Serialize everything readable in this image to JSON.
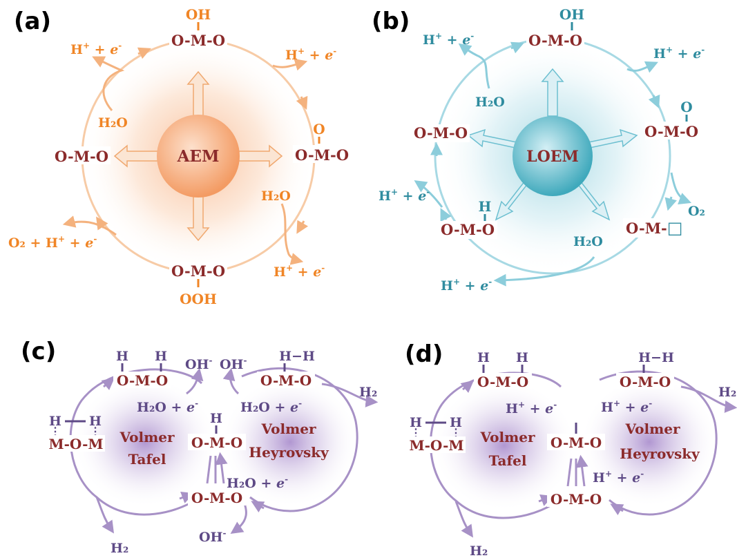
{
  "colors": {
    "orange": "#f08526",
    "orange_light": "#f7c8a0",
    "orange_sphere": "#f6a872",
    "teal": "#2f8c9f",
    "teal_light": "#9fd3df",
    "teal_sphere": "#58b8c8",
    "purple_text": "#5e4a86",
    "purple_line": "#a791c6",
    "purple_glow": "#9a7cc0",
    "maroon": "#8b2b2b"
  },
  "panel_a": {
    "label": "(a)",
    "center": "AEM",
    "top_sub": "OH",
    "top": "O-M-O",
    "right_sub": "O",
    "right": "O-M-O",
    "bottom": "O-M-O",
    "bottom_sub": "OOH",
    "left": "O-M-O",
    "h_top_left": "H",
    "h_top_left_sup": "+",
    "h_top_left_tail": "+ ",
    "h_top_left_e": "e",
    "h_top_left_esup": "-",
    "water_left": "H₂O",
    "h_top_right": "H",
    "h_top_right_sup": "+",
    "h_top_right_tail": "+ ",
    "h_top_right_e": "e",
    "h_top_right_esup": "-",
    "water_right": "H₂O",
    "h_bottom_right": "H",
    "h_bottom_right_sup": "+",
    "h_bottom_right_tail": "+ ",
    "h_bottom_right_e": "e",
    "h_bottom_right_esup": "-",
    "o2_left": "O₂ + H",
    "o2_left_sup": "+",
    "o2_left_tail": "+ ",
    "o2_left_e": "e",
    "o2_left_esup": "-"
  },
  "panel_b": {
    "label": "(b)",
    "center": "LOEM",
    "top_sub": "OH",
    "top": "O-M-O",
    "right_sub": "O",
    "right": "O-M-O",
    "vacancy": "O-M-",
    "vacancy_box": "□",
    "left_sub": "H",
    "left_lower": "O-M-O",
    "left": "O-M-O",
    "h_top_left": "H",
    "h_top_left_sup": "+",
    "h_top_left_tail": "+ ",
    "h_top_left_e": "e",
    "h_top_left_esup": "-",
    "water_top": "H₂O",
    "h_top_right": "H",
    "h_top_right_sup": "+",
    "h_top_right_tail": "+ ",
    "h_top_right_e": "e",
    "h_top_right_esup": "-",
    "o2": "O₂",
    "h_left": "H",
    "h_left_sup": "+",
    "h_left_tail": "+ ",
    "h_left_e": "e",
    "h_left_esup": "-",
    "water_bottom": "H₂O",
    "h_bottom": "H",
    "h_bottom_sup": "+",
    "h_bottom_tail": "+ ",
    "h_bottom_e": "e",
    "h_bottom_esup": "-"
  },
  "panel_c": {
    "label": "(c)",
    "left_cycle_1": "Volmer",
    "left_cycle_2": "Tafel",
    "right_cycle_1": "Volmer",
    "right_cycle_2": "Heyrovsky",
    "top_left_h1": "H",
    "top_left_h2": "H",
    "top_left": "O-M-O",
    "top_right_hh": "H−H",
    "top_right": "O-M-O",
    "center_h": "H",
    "center": "O-M-O",
    "bottom": "O-M-O",
    "left_h1": "H",
    "left_h2": "H",
    "left_mom": "M-O-M",
    "oh1": "OH",
    "oh1_sup": "-",
    "oh2": "OH",
    "oh2_sup": "-",
    "oh3": "OH",
    "oh3_sup": "-",
    "water_e_1": "H₂O + ",
    "water_e_1_e": "e",
    "water_e_1_sup": "-",
    "water_e_2": "H₂O + ",
    "water_e_2_e": "e",
    "water_e_2_sup": "-",
    "water_e_3": "H₂O + ",
    "water_e_3_e": "e",
    "water_e_3_sup": "-",
    "h2_right": "H₂",
    "h2_bottom": "H₂"
  },
  "panel_d": {
    "label": "(d)",
    "left_cycle_1": "Volmer",
    "left_cycle_2": "Tafel",
    "right_cycle_1": "Volmer",
    "right_cycle_2": "Heyrovsky",
    "top_left_h1": "H",
    "top_left_h2": "H",
    "top_left": "O-M-O",
    "top_right_hh": "H−H",
    "top_right": "O-M-O",
    "center_h": "H",
    "center": "O-M-O",
    "bottom": "O-M-O",
    "left_h1": "H",
    "left_h2": "H",
    "left_mom": "M-O-M",
    "he_1": "H",
    "he_1_sup": "+",
    "he_1_tail": " + ",
    "he_1_e": "e",
    "he_1_esup": "-",
    "he_2": "H",
    "he_2_sup": "+",
    "he_2_tail": " + ",
    "he_2_e": "e",
    "he_2_esup": "-",
    "he_3": "H",
    "he_3_sup": "+",
    "he_3_tail": " + ",
    "he_3_e": "e",
    "he_3_esup": "-",
    "h2_right": "H₂",
    "h2_bottom": "H₂"
  }
}
